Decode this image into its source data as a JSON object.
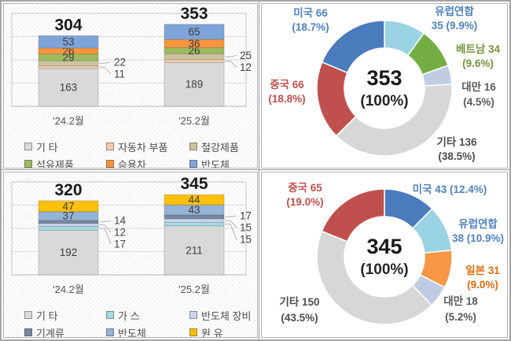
{
  "chart_data": [
    {
      "id": "export-items-stacked-bar",
      "type": "bar",
      "stacked": true,
      "categories": [
        "'24.2월",
        "'25.2월"
      ],
      "totals": [
        304,
        353
      ],
      "ylim": [
        0,
        400
      ],
      "grid_step": 100,
      "legend_position": "bottom",
      "series": [
        {
          "name": "기 타",
          "color": "#d9d9d9",
          "values": [
            163,
            189
          ],
          "labels": "inside"
        },
        {
          "name": "자동차 부품",
          "color": "#f7cbae",
          "values": [
            11,
            12
          ],
          "labels": "outside"
        },
        {
          "name": "철강제품",
          "color": "#cbc49f",
          "values": [
            22,
            25
          ],
          "labels": "outside"
        },
        {
          "name": "석유제품",
          "color": "#9dba5f",
          "values": [
            29,
            26
          ],
          "labels": "inside"
        },
        {
          "name": "승용차",
          "color": "#f5953d",
          "values": [
            26,
            36
          ],
          "labels": "inside"
        },
        {
          "name": "반도체",
          "color": "#7fa4d9",
          "values": [
            53,
            65
          ],
          "labels": "inside"
        }
      ]
    },
    {
      "id": "export-countries-donut",
      "type": "donut",
      "center": {
        "value": "353",
        "pct": "(100%)"
      },
      "slices": [
        {
          "name": "유럽연합",
          "value": 35,
          "pct": "9.9%",
          "color": "#9ad3e3",
          "text_color": "#4f81bd",
          "label_lines": [
            "유럽연합",
            "35 (9.9%)"
          ]
        },
        {
          "name": "베트남",
          "value": 34,
          "pct": "9.6%",
          "color": "#74ad44",
          "text_color": "#76933c",
          "label_lines": [
            "베트남 34",
            "(9.6%)"
          ]
        },
        {
          "name": "대만",
          "value": 16,
          "pct": "4.5%",
          "color": "#c0cce1",
          "text_color": "#595959",
          "label_lines": [
            "대만 16",
            "(4.5%)"
          ]
        },
        {
          "name": "기타",
          "value": 136,
          "pct": "38.5%",
          "color": "#d7d7d7",
          "text_color": "#4d4d4d",
          "label_lines": [
            "기타 136",
            "(38.5%)"
          ]
        },
        {
          "name": "중국",
          "value": 66,
          "pct": "18.8%",
          "color": "#c0504d",
          "text_color": "#c0504d",
          "label_lines": [
            "중국 66",
            "(18.8%)"
          ]
        },
        {
          "name": "미국",
          "value": 66,
          "pct": "18.7%",
          "color": "#4a7bbd",
          "text_color": "#4f81bd",
          "label_lines": [
            "미국 66",
            "(18.7%)"
          ]
        }
      ]
    },
    {
      "id": "import-items-stacked-bar",
      "type": "bar",
      "stacked": true,
      "categories": [
        "'24.2월",
        "'25.2월"
      ],
      "totals": [
        320,
        345
      ],
      "ylim": [
        0,
        400
      ],
      "grid_step": 100,
      "legend_position": "bottom",
      "series": [
        {
          "name": "기 타",
          "color": "#d9d9d9",
          "values": [
            192,
            211
          ],
          "labels": "inside"
        },
        {
          "name": "가 스",
          "color": "#a6d9e2",
          "values": [
            17,
            15
          ],
          "labels": "outside"
        },
        {
          "name": "반도체 장비",
          "color": "#c9d6ec",
          "values": [
            12,
            15
          ],
          "labels": "outside"
        },
        {
          "name": "기계류",
          "color": "#76879f",
          "values": [
            14,
            17
          ],
          "labels": "outside"
        },
        {
          "name": "반도체",
          "color": "#95b3d7",
          "values": [
            37,
            43
          ],
          "labels": "inside"
        },
        {
          "name": "원 유",
          "color": "#fdc008",
          "values": [
            47,
            44
          ],
          "labels": "inside"
        }
      ]
    },
    {
      "id": "import-countries-donut",
      "type": "donut",
      "center": {
        "value": "345",
        "pct": "(100%)"
      },
      "slices": [
        {
          "name": "미국",
          "value": 43,
          "pct": "12.4%",
          "color": "#4a7bbd",
          "text_color": "#4f81bd",
          "label_lines": [
            "미국 43 (12.4%)"
          ]
        },
        {
          "name": "유럽연합",
          "value": 38,
          "pct": "10.9%",
          "color": "#9ad3e3",
          "text_color": "#4f81bd",
          "label_lines": [
            "유럽연합",
            "38 (10.9%)"
          ]
        },
        {
          "name": "일본",
          "value": 31,
          "pct": "9.0%",
          "color": "#f79646",
          "text_color": "#e36c09",
          "label_lines": [
            "일본 31",
            "(9.0%)"
          ]
        },
        {
          "name": "대만",
          "value": 18,
          "pct": "5.2%",
          "color": "#c0cce1",
          "text_color": "#595959",
          "label_lines": [
            "대만 18",
            "(5.2%)"
          ]
        },
        {
          "name": "기타",
          "value": 150,
          "pct": "43.5%",
          "color": "#d7d7d7",
          "text_color": "#4d4d4d",
          "label_lines": [
            "기타 150",
            "(43.5%)"
          ]
        },
        {
          "name": "중국",
          "value": 65,
          "pct": "19.0%",
          "color": "#c0504d",
          "text_color": "#c0504d",
          "label_lines": [
            "중국 65",
            "(19.0%)"
          ]
        }
      ]
    }
  ]
}
